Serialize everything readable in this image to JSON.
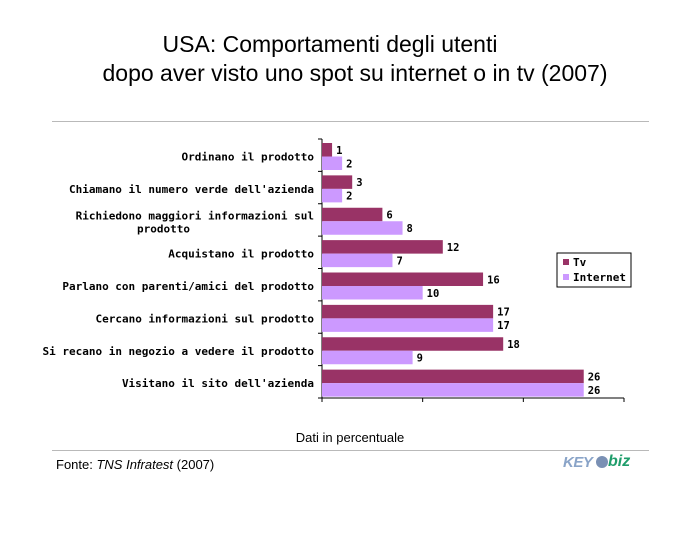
{
  "title": {
    "line1": "USA: Comportamenti degli utenti",
    "line2": "dopo aver visto uno spot su internet o in tv (2007)"
  },
  "footer": {
    "source_prefix": "Fonte: ",
    "source_name": "TNS Infratest",
    "source_suffix": " (2007)",
    "logo_left": "KEY",
    "logo_right": "biz"
  },
  "colors": {
    "tv": "#993366",
    "internet": "#cc99ff"
  },
  "chart_data": {
    "type": "bar",
    "orientation": "horizontal",
    "categories": [
      "Ordinano il prodotto",
      "Chiamano il numero verde dell'azienda",
      "Richiedono maggiori informazioni sul prodotto",
      "Acquistano il prodotto",
      "Parlano con parenti/amici del prodotto",
      "Cercano informazioni sul prodotto",
      "Si recano in negozio a vedere il prodotto",
      "Visitano il sito dell'azienda"
    ],
    "category_lines": [
      [
        "Ordinano il prodotto"
      ],
      [
        "Chiamano il numero verde dell'azienda"
      ],
      [
        "Richiedono maggiori informazioni sul",
        "prodotto"
      ],
      [
        "Acquistano il prodotto"
      ],
      [
        "Parlano con parenti/amici del prodotto"
      ],
      [
        "Cercano informazioni sul prodotto"
      ],
      [
        "Si recano in negozio a vedere il prodotto"
      ],
      [
        "Visitano il sito dell'azienda"
      ]
    ],
    "series": [
      {
        "name": "Tv",
        "values": [
          1,
          3,
          6,
          12,
          16,
          17,
          18,
          26
        ]
      },
      {
        "name": "Internet",
        "values": [
          2,
          2,
          8,
          7,
          10,
          17,
          9,
          26
        ]
      }
    ],
    "xlabel": "Dati in percentuale",
    "xlim": [
      0,
      30
    ],
    "legend_position": "right",
    "grid": false
  }
}
